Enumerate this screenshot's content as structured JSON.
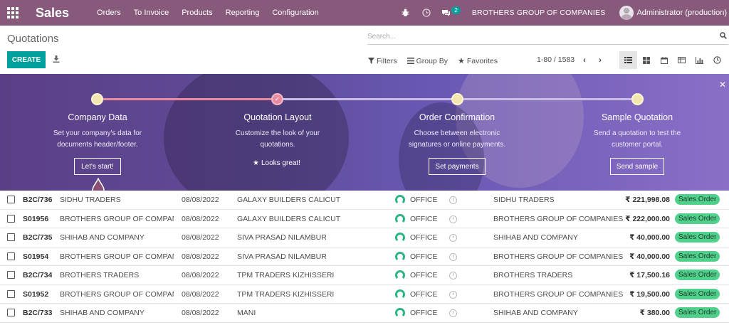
{
  "navbar": {
    "app_title": "Sales",
    "menu": [
      "Orders",
      "To Invoice",
      "Products",
      "Reporting",
      "Configuration"
    ],
    "chat_count": "2",
    "company": "BROTHERS GROUP OF COMPANIES",
    "user": "Administrator (production)"
  },
  "control_panel": {
    "title": "Quotations",
    "search_placeholder": "Search...",
    "create_label": "CREATE",
    "filters_label": "Filters",
    "group_by_label": "Group By",
    "favorites_label": "Favorites",
    "pager": "1-80 / 1583"
  },
  "onboarding": {
    "steps": [
      {
        "title": "Company Data",
        "desc1": "Set your company's data for",
        "desc2": "documents header/footer.",
        "action": "Let's start!"
      },
      {
        "title": "Quotation Layout",
        "desc1": "Customize the look of your",
        "desc2": "quotations.",
        "action": "Looks great!"
      },
      {
        "title": "Order Confirmation",
        "desc1": "Choose between electronic",
        "desc2": "signatures or online payments.",
        "action": "Set payments"
      },
      {
        "title": "Sample Quotation",
        "desc1": "Send a quotation to test the",
        "desc2": "customer portal.",
        "action": "Send sample"
      }
    ]
  },
  "rows": [
    {
      "number": "B2C/736",
      "customer": "SIDHU TRADERS",
      "date": "08/08/2022",
      "salesperson": "GALAXY BUILDERS CALICUT",
      "team": "OFFICE",
      "company": "SIDHU TRADERS",
      "total": "₹ 221,998.08",
      "status": "Sales Order"
    },
    {
      "number": "S01956",
      "customer": "BROTHERS GROUP OF COMPANI...",
      "date": "08/08/2022",
      "salesperson": "GALAXY BUILDERS CALICUT",
      "team": "OFFICE",
      "company": "BROTHERS GROUP OF COMPANIES",
      "total": "₹ 222,000.00",
      "status": "Sales Order"
    },
    {
      "number": "B2C/735",
      "customer": "SHIHAB AND COMPANY",
      "date": "08/08/2022",
      "salesperson": "SIVA PRASAD NILAMBUR",
      "team": "OFFICE",
      "company": "SHIHAB AND COMPANY",
      "total": "₹ 40,000.00",
      "status": "Sales Order"
    },
    {
      "number": "S01954",
      "customer": "BROTHERS GROUP OF COMPANI...",
      "date": "08/08/2022",
      "salesperson": "SIVA PRASAD NILAMBUR",
      "team": "OFFICE",
      "company": "BROTHERS GROUP OF COMPANIES",
      "total": "₹ 40,000.00",
      "status": "Sales Order"
    },
    {
      "number": "B2C/734",
      "customer": "BROTHERS TRADERS",
      "date": "08/08/2022",
      "salesperson": "TPM TRADERS KIZHISSERI",
      "team": "OFFICE",
      "company": "BROTHERS TRADERS",
      "total": "₹ 17,500.16",
      "status": "Sales Order"
    },
    {
      "number": "S01952",
      "customer": "BROTHERS GROUP OF COMPANI...",
      "date": "08/08/2022",
      "salesperson": "TPM TRADERS KIZHISSERI",
      "team": "OFFICE",
      "company": "BROTHERS GROUP OF COMPANIES",
      "total": "₹ 19,500.00",
      "status": "Sales Order"
    },
    {
      "number": "B2C/733",
      "customer": "SHIHAB AND COMPANY",
      "date": "08/08/2022",
      "salesperson": "MANI",
      "team": "OFFICE",
      "company": "SHIHAB AND COMPANY",
      "total": "₹ 380.00",
      "status": "Sales Order"
    }
  ],
  "colors": {
    "navbar": "#875a7b",
    "primary": "#00a09d",
    "status_badge": "#4fd18b"
  }
}
